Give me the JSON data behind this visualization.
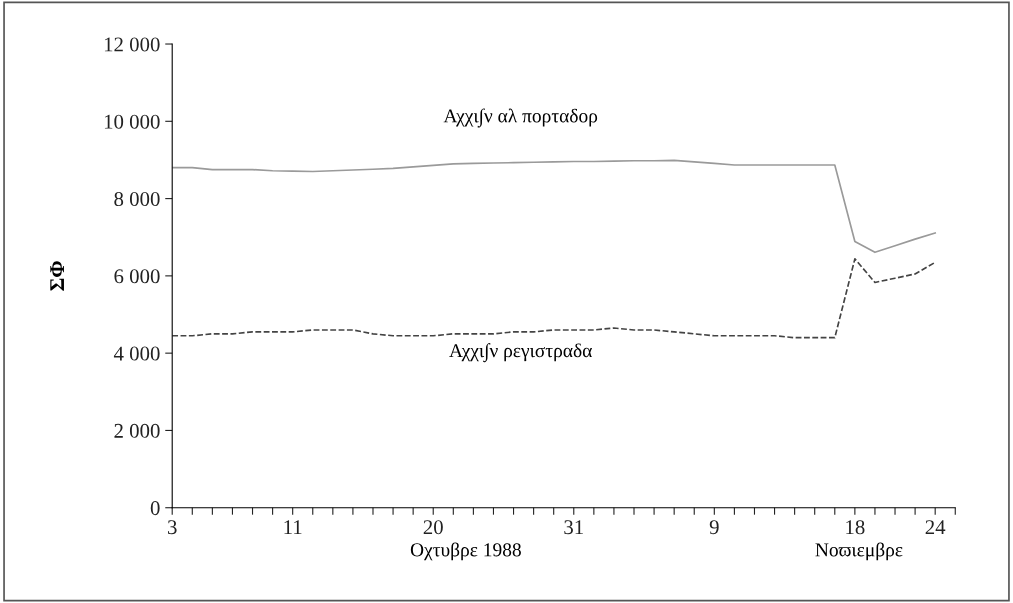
{
  "chart_data": {
    "type": "line",
    "ylabel": "ΣΦ",
    "xlabel": "Οχτυβρε 1988",
    "ylim": [
      0,
      12000
    ],
    "yticks": [
      {
        "value": 0,
        "label": "0"
      },
      {
        "value": 2000,
        "label": "2 000"
      },
      {
        "value": 4000,
        "label": "4 000"
      },
      {
        "value": 6000,
        "label": "6 000"
      },
      {
        "value": 8000,
        "label": "8 000"
      },
      {
        "value": 10000,
        "label": "10 000"
      },
      {
        "value": 12000,
        "label": "12 000"
      }
    ],
    "categories": [
      "3",
      null,
      null,
      null,
      null,
      null,
      "11",
      null,
      null,
      null,
      null,
      null,
      null,
      "20",
      null,
      null,
      null,
      null,
      null,
      null,
      "31",
      null,
      null,
      null,
      null,
      null,
      null,
      "9",
      null,
      null,
      null,
      null,
      null,
      null,
      "18",
      null,
      null,
      null,
      "24",
      null
    ],
    "grid": false,
    "legend": false,
    "marker": "none",
    "series": [
      {
        "color": "#9a9a9a",
        "line_style": "solid",
        "values": [
          8800,
          8800,
          8750,
          8750,
          8750,
          8720,
          8710,
          8700,
          8720,
          8740,
          8760,
          8780,
          8820,
          8860,
          8900,
          8910,
          8920,
          8930,
          8940,
          8950,
          8960,
          8960,
          8970,
          8980,
          8980,
          8990,
          8950,
          8910,
          8870,
          8870,
          8870,
          8870,
          8870,
          8870,
          6890,
          6610,
          6780,
          6950,
          7110,
          null
        ]
      },
      {
        "color": "#444444",
        "line_style": "dashed",
        "values": [
          4450,
          4450,
          4500,
          4500,
          4550,
          4550,
          4550,
          4600,
          4600,
          4600,
          4500,
          4450,
          4450,
          4450,
          4500,
          4500,
          4500,
          4550,
          4550,
          4600,
          4600,
          4600,
          4650,
          4600,
          4600,
          4550,
          4500,
          4450,
          4450,
          4450,
          4450,
          4400,
          4400,
          4400,
          6440,
          5830,
          5940,
          6050,
          6350,
          null
        ]
      }
    ],
    "annotations": [
      "Αχχι∫ν αλ πορταδορ",
      "Αχχι∫ν ρεγιστραδα",
      "Νοϖιεμβρε"
    ]
  }
}
